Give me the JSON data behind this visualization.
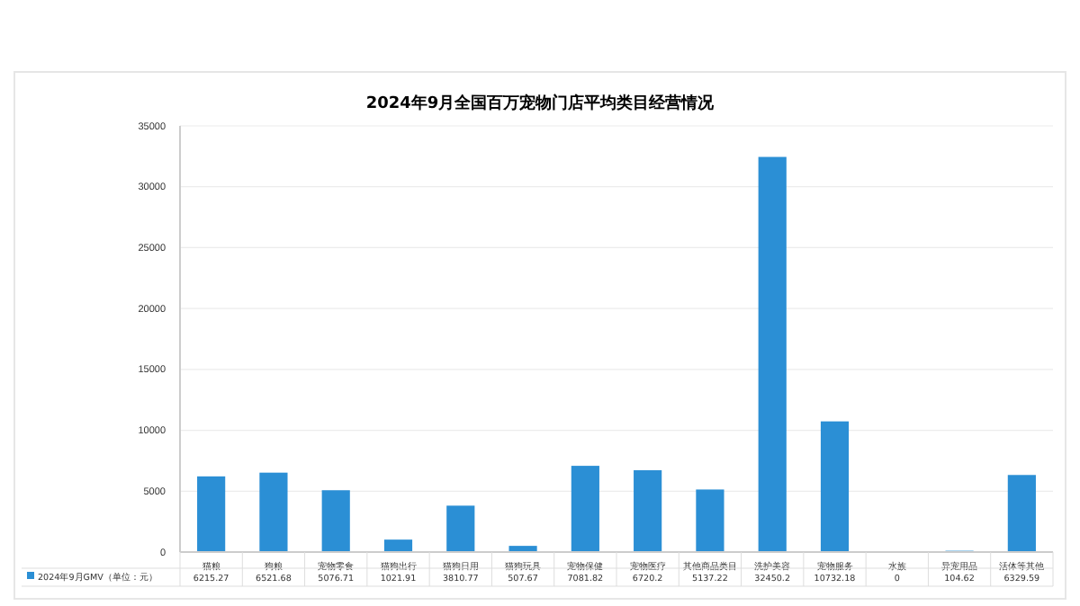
{
  "chart_data": {
    "type": "bar",
    "title": "2024年9月全国百万宠物门店平均类目经营情况",
    "categories": [
      "猫粮",
      "狗粮",
      "宠物零食",
      "猫狗出行",
      "猫狗日用",
      "猫狗玩具",
      "宠物保健",
      "宠物医疗",
      "其他商品类目",
      "洗护美容",
      "宠物服务",
      "水族",
      "异宠用品",
      "活体等其他"
    ],
    "series": [
      {
        "name": "2024年9月GMV（单位：元）",
        "color": "#2b8fd5",
        "values": [
          6215.27,
          6521.68,
          5076.71,
          1021.91,
          3810.77,
          507.67,
          7081.82,
          6720.2,
          5137.22,
          32450.2,
          10732.18,
          0,
          104.62,
          6329.59
        ]
      }
    ],
    "ylim": [
      0,
      35000
    ],
    "yticks": [
      0,
      5000,
      10000,
      15000,
      20000,
      25000,
      30000,
      35000
    ],
    "grid": "y",
    "data_labels": true,
    "legend": "bottom left"
  }
}
